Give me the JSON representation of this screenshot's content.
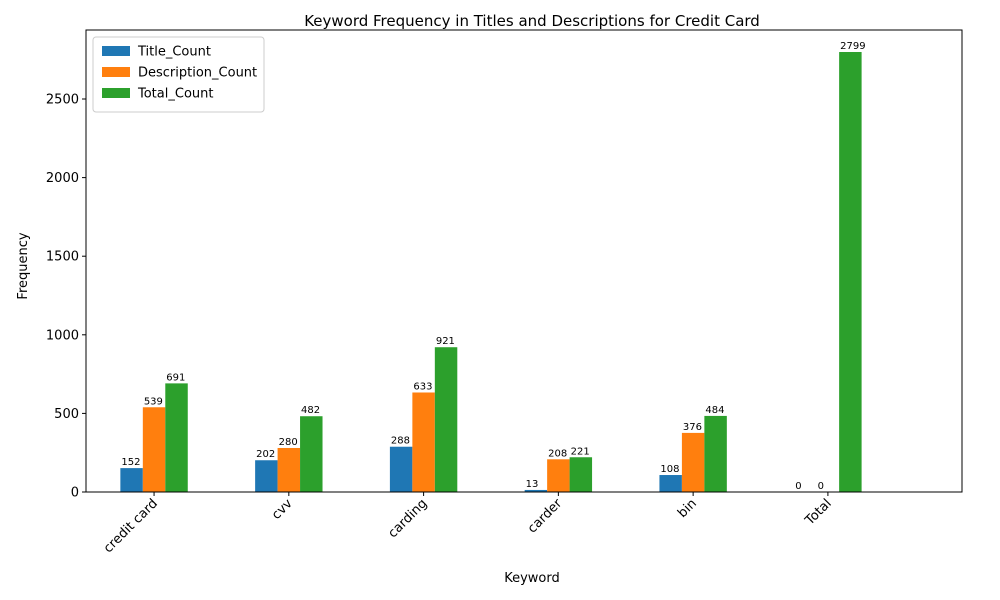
{
  "chart_data": {
    "type": "bar",
    "title": "Keyword Frequency in Titles and Descriptions for Credit Card",
    "xlabel": "Keyword",
    "ylabel": "Frequency",
    "categories": [
      "credit card",
      "cvv",
      "carding",
      "carder",
      "bin",
      "Total"
    ],
    "series": [
      {
        "name": "Title_Count",
        "color": "#1f77b4",
        "values": [
          152,
          202,
          288,
          13,
          108,
          0
        ]
      },
      {
        "name": "Description_Count",
        "color": "#ff7f0e",
        "values": [
          539,
          280,
          633,
          208,
          376,
          0
        ]
      },
      {
        "name": "Total_Count",
        "color": "#2ca02c",
        "values": [
          691,
          482,
          921,
          221,
          484,
          2799
        ]
      }
    ],
    "ylim": [
      0,
      2939
    ],
    "yticks": [
      0,
      500,
      1000,
      1500,
      2000,
      2500
    ],
    "grid": false,
    "legend": "top-left"
  }
}
